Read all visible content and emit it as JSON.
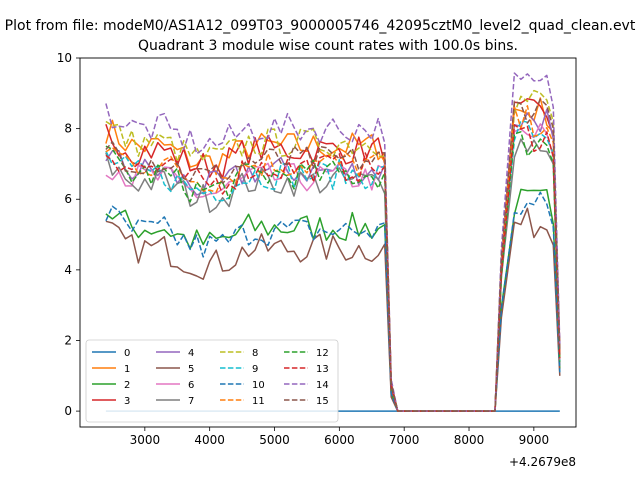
{
  "chart_data": {
    "type": "line",
    "suptitle": "Plot from file: modeM0/AS1A12_099T03_9000005746_42095cztM0_level2_quad_clean.evt",
    "title": "Quadrant 3 module wise count rates with 100.0s bins.",
    "xlabel": "",
    "ylabel": "",
    "x_offset_label": "+4.2679e8",
    "x_offset": 426790000,
    "xlim": [
      2000,
      9650
    ],
    "ylim": [
      -0.45,
      10.0
    ],
    "x_ticks": [
      3000,
      4000,
      5000,
      6000,
      7000,
      8000,
      9000
    ],
    "x_tick_labels": [
      "3000",
      "4000",
      "5000",
      "6000",
      "7000",
      "8000",
      "9000"
    ],
    "y_ticks": [
      0,
      2,
      4,
      6,
      8,
      10
    ],
    "y_tick_labels": [
      "0",
      "2",
      "4",
      "6",
      "8",
      "10"
    ],
    "grid": false,
    "legend": {
      "position": "lower-left",
      "columns": 4
    },
    "x_segments": {
      "on1": [
        2400,
        6700
      ],
      "gap_edge1": [
        6800,
        6900
      ],
      "off": [
        6900,
        8400
      ],
      "gap_edge2": [
        8500,
        8600
      ],
      "on2": [
        8700,
        9200
      ],
      "tail": [
        9300,
        9400
      ]
    },
    "series": [
      {
        "name": "0",
        "color": "#1f77b4",
        "dash": "solid",
        "level1": 0.0,
        "level2": 0.0,
        "edge": 0.0,
        "tail": 0.0
      },
      {
        "name": "1",
        "color": "#ff7f0e",
        "dash": "solid",
        "level1": 7.5,
        "level2": 8.5,
        "edge": 0.8,
        "tail": 1.6
      },
      {
        "name": "2",
        "color": "#2ca02c",
        "dash": "solid",
        "level1": 5.2,
        "level2": 5.9,
        "edge": 0.5,
        "tail": 1.2
      },
      {
        "name": "3",
        "color": "#d62728",
        "dash": "solid",
        "level1": 7.4,
        "level2": 8.4,
        "edge": 0.8,
        "tail": 1.8
      },
      {
        "name": "4",
        "color": "#9467bd",
        "dash": "solid",
        "level1": 6.8,
        "level2": 8.3,
        "edge": 0.7,
        "tail": 1.5
      },
      {
        "name": "5",
        "color": "#8c564b",
        "dash": "solid",
        "level1": 4.6,
        "level2": 5.3,
        "edge": 0.4,
        "tail": 1.0
      },
      {
        "name": "6",
        "color": "#e377c2",
        "dash": "solid",
        "level1": 6.6,
        "level2": 7.8,
        "edge": 0.7,
        "tail": 1.4
      },
      {
        "name": "7",
        "color": "#7f7f7f",
        "dash": "solid",
        "level1": 6.5,
        "level2": 7.6,
        "edge": 0.7,
        "tail": 1.3
      },
      {
        "name": "8",
        "color": "#bcbd22",
        "dash": "dashed",
        "level1": 7.6,
        "level2": 8.8,
        "edge": 0.8,
        "tail": 1.6
      },
      {
        "name": "9",
        "color": "#17becf",
        "dash": "dashed",
        "level1": 6.7,
        "level2": 7.9,
        "edge": 0.7,
        "tail": 1.4
      },
      {
        "name": "10",
        "color": "#1f77b4",
        "dash": "dashed",
        "level1": 5.1,
        "level2": 5.8,
        "edge": 0.5,
        "tail": 1.1
      },
      {
        "name": "11",
        "color": "#ff7f0e",
        "dash": "dashed",
        "level1": 7.0,
        "level2": 8.2,
        "edge": 0.7,
        "tail": 1.5
      },
      {
        "name": "12",
        "color": "#2ca02c",
        "dash": "dashed",
        "level1": 6.7,
        "level2": 7.6,
        "edge": 0.7,
        "tail": 1.4
      },
      {
        "name": "13",
        "color": "#d62728",
        "dash": "dashed",
        "level1": 6.9,
        "level2": 7.8,
        "edge": 0.7,
        "tail": 1.5
      },
      {
        "name": "14",
        "color": "#9467bd",
        "dash": "dashed",
        "level1": 8.0,
        "level2": 9.2,
        "edge": 0.9,
        "tail": 1.9
      },
      {
        "name": "15",
        "color": "#8c564b",
        "dash": "dashed",
        "level1": 7.1,
        "level2": 8.6,
        "edge": 0.8,
        "tail": 1.7
      }
    ]
  }
}
